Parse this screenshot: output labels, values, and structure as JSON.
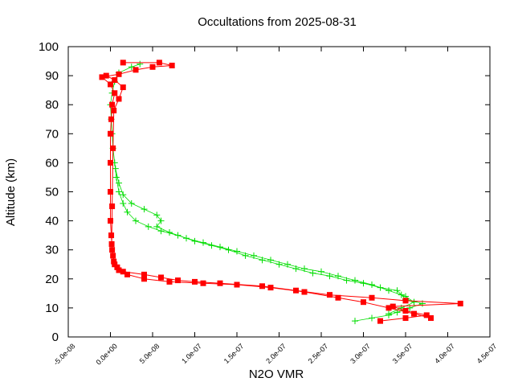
{
  "chart_data": {
    "type": "scatter",
    "title": "Occultations from 2025-08-31",
    "xlabel": "N2O VMR",
    "ylabel": "Altitude (km)",
    "xlim": [
      -5e-08,
      4.5e-07
    ],
    "ylim": [
      0,
      100
    ],
    "xticks": [
      "-5.0e-08",
      "0.0e+00",
      "5.0e-08",
      "1.0e-07",
      "1.5e-07",
      "2.0e-07",
      "2.5e-07",
      "3.0e-07",
      "3.5e-07",
      "4.0e-07",
      "4.5e-07"
    ],
    "xtick_values": [
      -5e-08,
      0,
      5e-08,
      1e-07,
      1.5e-07,
      2e-07,
      2.5e-07,
      3e-07,
      3.5e-07,
      4e-07,
      4.5e-07
    ],
    "yticks": [
      "0",
      "10",
      "20",
      "30",
      "40",
      "50",
      "60",
      "70",
      "80",
      "90",
      "100"
    ],
    "ytick_values": [
      0,
      10,
      20,
      30,
      40,
      50,
      60,
      70,
      80,
      90,
      100
    ],
    "grid": false,
    "series": [
      {
        "color": "#00dd00",
        "marker": "plus",
        "points": [
          [
            2.9e-07,
            5.5
          ],
          [
            3.1e-07,
            6.5
          ],
          [
            3.3e-07,
            7.5
          ],
          [
            3.4e-07,
            8.5
          ],
          [
            3.55e-07,
            10
          ],
          [
            3.7e-07,
            11.5
          ],
          [
            3.5e-07,
            13
          ],
          [
            3.45e-07,
            14.5
          ],
          [
            3.4e-07,
            16
          ],
          [
            3.2e-07,
            17
          ],
          [
            3e-07,
            18.5
          ],
          [
            2.8e-07,
            19.5
          ],
          [
            2.6e-07,
            21
          ],
          [
            2.4e-07,
            22
          ],
          [
            2.2e-07,
            23.5
          ],
          [
            2e-07,
            25
          ],
          [
            1.8e-07,
            26.5
          ],
          [
            1.6e-07,
            28
          ],
          [
            1.4e-07,
            30
          ],
          [
            1.2e-07,
            31.5
          ],
          [
            1e-07,
            33
          ],
          [
            8e-08,
            35
          ],
          [
            6e-08,
            36.5
          ],
          [
            4.5e-08,
            38
          ],
          [
            3e-08,
            40
          ],
          [
            2e-08,
            43
          ],
          [
            1.5e-08,
            46
          ],
          [
            1e-08,
            50
          ],
          [
            7e-09,
            55
          ],
          [
            5e-09,
            60
          ],
          [
            3e-09,
            65
          ],
          [
            2e-09,
            70
          ],
          [
            1e-09,
            75
          ],
          [
            0,
            80
          ],
          [
            2e-09,
            84
          ],
          [
            5e-09,
            88
          ],
          [
            1e-08,
            91
          ],
          [
            2.5e-08,
            93
          ],
          [
            3.5e-08,
            94
          ]
        ]
      },
      {
        "color": "#00dd00",
        "marker": "plus",
        "points": [
          [
            3.3e-07,
            8
          ],
          [
            3.45e-07,
            10
          ],
          [
            3.6e-07,
            12
          ],
          [
            3.5e-07,
            14
          ],
          [
            3.3e-07,
            16
          ],
          [
            3.1e-07,
            18
          ],
          [
            2.9e-07,
            19.5
          ],
          [
            2.7e-07,
            21
          ],
          [
            2.5e-07,
            22.5
          ],
          [
            2.3e-07,
            23.5
          ],
          [
            2.1e-07,
            25
          ],
          [
            1.9e-07,
            26.5
          ],
          [
            1.7e-07,
            28
          ],
          [
            1.5e-07,
            29.5
          ],
          [
            1.3e-07,
            31
          ],
          [
            1.1e-07,
            32.5
          ],
          [
            9e-08,
            34
          ],
          [
            7e-08,
            36
          ],
          [
            5.5e-08,
            38
          ],
          [
            6e-08,
            40
          ],
          [
            5.5e-08,
            42
          ],
          [
            4e-08,
            44
          ],
          [
            2.5e-08,
            46
          ],
          [
            1.5e-08,
            49
          ],
          [
            1e-08,
            53
          ],
          [
            6e-09,
            58
          ]
        ]
      },
      {
        "color": "#ff0000",
        "marker": "square",
        "points": [
          [
            3.2e-07,
            5.5
          ],
          [
            3.5e-07,
            6.5
          ],
          [
            3.75e-07,
            7.5
          ],
          [
            3.5e-07,
            9
          ],
          [
            3.35e-07,
            10.5
          ],
          [
            4.15e-07,
            11.5
          ],
          [
            3.5e-07,
            12.5
          ],
          [
            3.1e-07,
            13.5
          ],
          [
            2.6e-07,
            14.5
          ],
          [
            2.2e-07,
            16
          ],
          [
            1.8e-07,
            17.5
          ],
          [
            1.3e-07,
            18.5
          ],
          [
            1e-07,
            19
          ],
          [
            8e-08,
            19.5
          ],
          [
            6e-08,
            20.5
          ],
          [
            4e-08,
            21.5
          ],
          [
            1.5e-08,
            22.5
          ],
          [
            8e-09,
            24
          ],
          [
            4e-09,
            26
          ],
          [
            2e-09,
            30
          ],
          [
            1e-09,
            35
          ],
          [
            0,
            40
          ],
          [
            0,
            50
          ],
          [
            0,
            60
          ],
          [
            0,
            70
          ],
          [
            1e-09,
            75
          ],
          [
            2e-09,
            80
          ],
          [
            5e-09,
            84
          ],
          [
            0,
            87
          ],
          [
            -1e-08,
            89.5
          ],
          [
            1e-08,
            90.5
          ],
          [
            3e-08,
            92
          ],
          [
            5e-08,
            93
          ],
          [
            7.3e-08,
            93.5
          ],
          [
            5.8e-08,
            94.5
          ],
          [
            1.5e-08,
            94.5
          ]
        ]
      },
      {
        "color": "#ff0000",
        "marker": "square",
        "points": [
          [
            3.8e-07,
            6.5
          ],
          [
            3.6e-07,
            8
          ],
          [
            3.3e-07,
            10
          ],
          [
            3e-07,
            12
          ],
          [
            2.7e-07,
            13.5
          ],
          [
            2.3e-07,
            15.5
          ],
          [
            1.9e-07,
            17
          ],
          [
            1.5e-07,
            18
          ],
          [
            1.1e-07,
            18.5
          ],
          [
            7e-08,
            19
          ],
          [
            4e-08,
            20
          ],
          [
            2e-08,
            21.5
          ],
          [
            1e-08,
            23
          ],
          [
            5e-09,
            25
          ],
          [
            3e-09,
            28
          ],
          [
            1.5e-09,
            32
          ],
          [
            2e-09,
            45
          ],
          [
            3e-09,
            65
          ],
          [
            4e-09,
            78
          ],
          [
            1e-08,
            82
          ],
          [
            1.5e-08,
            86
          ],
          [
            5e-09,
            88.5
          ],
          [
            -5e-09,
            90
          ]
        ]
      }
    ]
  }
}
